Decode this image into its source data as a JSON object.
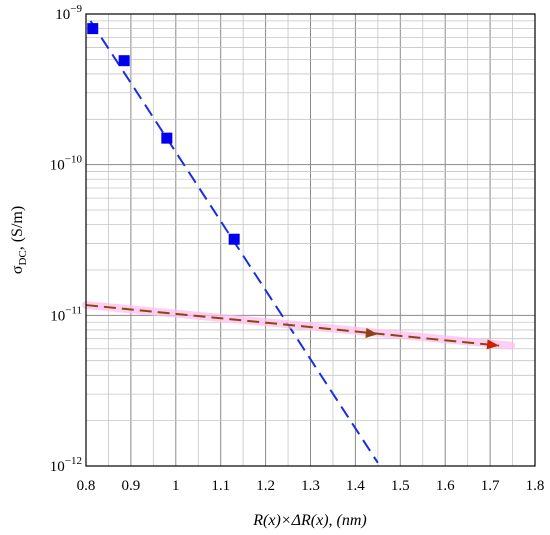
{
  "chart_data": {
    "type": "scatter",
    "title": "",
    "xlabel": "R(x)×ΔR(x), (nm)",
    "ylabel": "σDC, (S/m)",
    "x_scale": "linear",
    "y_scale": "log",
    "xlim": [
      0.8,
      1.8
    ],
    "ylim": [
      1e-12,
      1e-09
    ],
    "xticks": [
      "0.8",
      "0.9",
      "1",
      "1.1",
      "1.2",
      "1.3",
      "1.4",
      "1.5",
      "1.6",
      "1.7",
      "1.8"
    ],
    "yticks": [
      {
        "base": "10",
        "exp": "−12",
        "value": 1e-12
      },
      {
        "base": "10",
        "exp": "−11",
        "value": 1e-11
      },
      {
        "base": "10",
        "exp": "−10",
        "value": 1e-10
      },
      {
        "base": "10",
        "exp": "−9",
        "value": 1e-09
      }
    ],
    "grid": true,
    "legend": "none",
    "series": [
      {
        "kind": "markers",
        "marker": "square",
        "color": "#0000ee",
        "points": [
          {
            "x": 0.815,
            "y": 8e-10
          },
          {
            "x": 0.885,
            "y": 4.9e-10
          },
          {
            "x": 0.98,
            "y": 1.5e-10
          },
          {
            "x": 1.13,
            "y": 3.2e-11
          }
        ]
      },
      {
        "kind": "dashed-fit",
        "color": "#1a2ee0",
        "points": [
          {
            "x": 0.81,
            "y": 9e-10
          },
          {
            "x": 1.45,
            "y": 1.05e-12
          }
        ]
      },
      {
        "kind": "dashed-arrow",
        "color": "#8b4513",
        "highlight": "#ffc0f0",
        "points": [
          {
            "x": 0.8,
            "y": 1.17e-11
          },
          {
            "x": 1.72,
            "y": 6.3e-12
          }
        ]
      }
    ],
    "annotations": [
      {
        "kind": "arrowhead",
        "x": 1.45,
        "y": 7.5e-12,
        "color": "#8b4513"
      },
      {
        "kind": "arrowhead",
        "x": 1.72,
        "y": 6.3e-12,
        "color": "#cc2200"
      }
    ]
  }
}
